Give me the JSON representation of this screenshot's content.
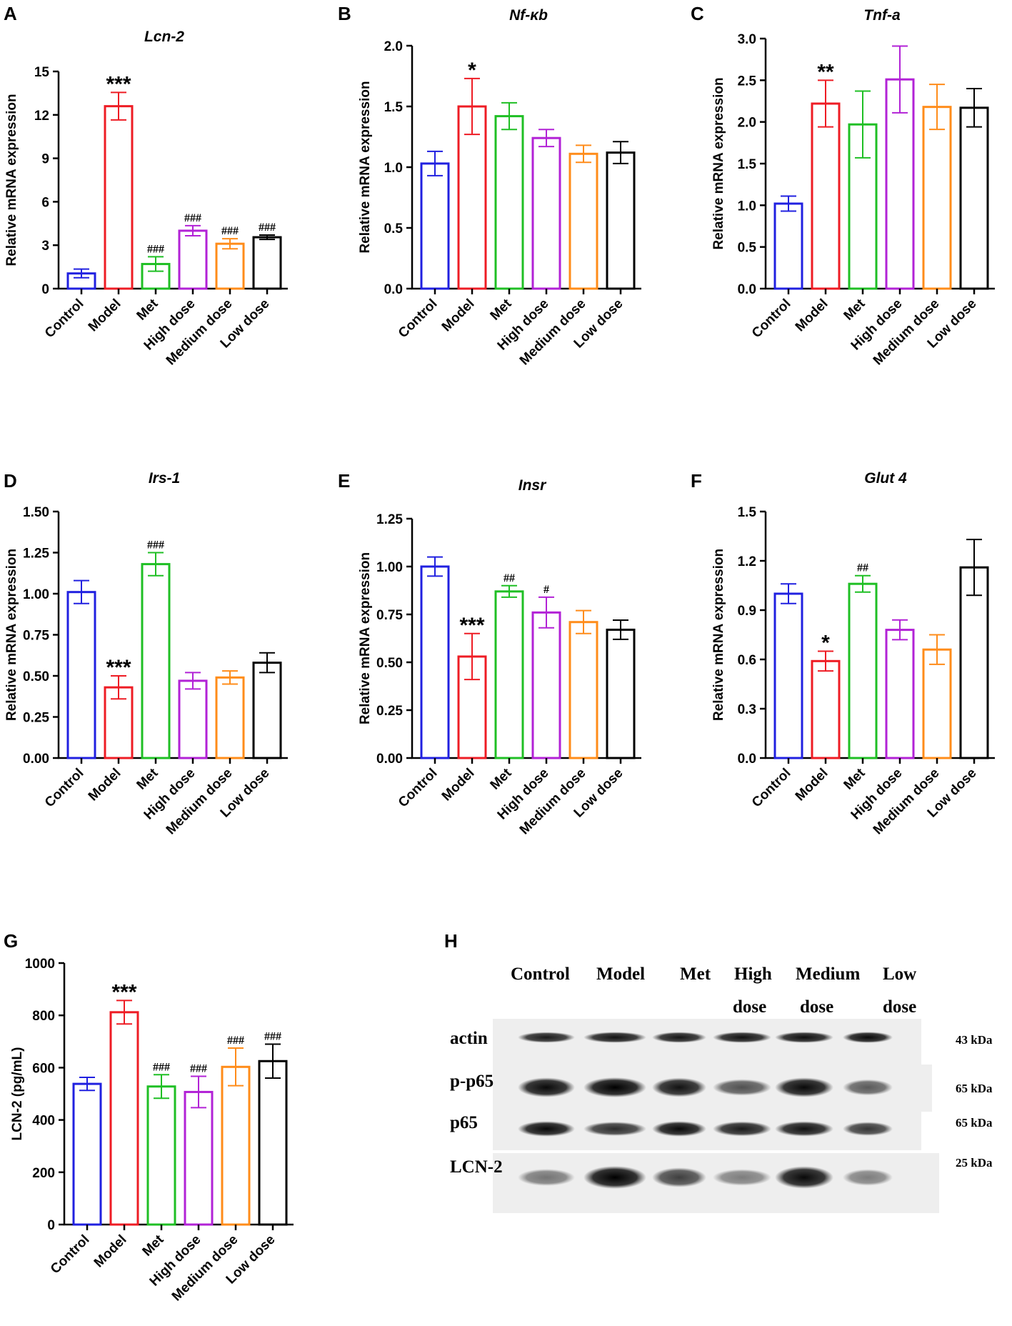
{
  "panel_letters": [
    "A",
    "B",
    "C",
    "D",
    "E",
    "F",
    "G",
    "H"
  ],
  "colors": {
    "Control": "#2020e0",
    "Model": "#ee1c24",
    "Met": "#1fbf24",
    "High dose": "#b222d6",
    "Medium dose": "#ff8c1a",
    "Low dose": "#000000"
  },
  "chart_data": [
    {
      "panel": "A",
      "type": "bar",
      "title": "Lcn-2",
      "title_italic": true,
      "ylabel": "Relative mRNA expression",
      "categories": [
        "Control",
        "Model",
        "Met",
        "High dose",
        "Medium dose",
        "Low dose"
      ],
      "values": [
        1.05,
        12.6,
        1.7,
        4.0,
        3.1,
        3.55
      ],
      "errors": [
        0.3,
        0.95,
        0.5,
        0.35,
        0.35,
        0.15
      ],
      "annotations": [
        "",
        "***",
        "###",
        "###",
        "###",
        "###"
      ],
      "ylim": [
        0,
        15
      ],
      "yticks": [
        0,
        3,
        6,
        9,
        12,
        15
      ],
      "tick_labels": [
        "0",
        "3",
        "6",
        "9",
        "12",
        "15"
      ]
    },
    {
      "panel": "B",
      "type": "bar",
      "title": "Nf-κb",
      "title_italic": true,
      "ylabel": "Relative mRNA expression",
      "categories": [
        "Control",
        "Model",
        "Met",
        "High dose",
        "Medium dose",
        "Low dose"
      ],
      "values": [
        1.03,
        1.5,
        1.42,
        1.24,
        1.11,
        1.12
      ],
      "errors": [
        0.1,
        0.23,
        0.11,
        0.07,
        0.07,
        0.09
      ],
      "annotations": [
        "",
        "*",
        "",
        "",
        "",
        ""
      ],
      "ylim": [
        0,
        2.0
      ],
      "yticks": [
        0,
        0.5,
        1.0,
        1.5,
        2.0
      ],
      "tick_labels": [
        "0.0",
        "0.5",
        "1.0",
        "1.5",
        "2.0"
      ]
    },
    {
      "panel": "C",
      "type": "bar",
      "title": "Tnf-a",
      "title_italic": true,
      "ylabel": "Relative mRNA expression",
      "categories": [
        "Control",
        "Model",
        "Met",
        "High dose",
        "Medium dose",
        "Low dose"
      ],
      "values": [
        1.02,
        2.22,
        1.97,
        2.51,
        2.18,
        2.17
      ],
      "errors": [
        0.09,
        0.28,
        0.4,
        0.4,
        0.27,
        0.23
      ],
      "annotations": [
        "",
        "**",
        "",
        "",
        "",
        ""
      ],
      "ylim": [
        0,
        3.0
      ],
      "yticks": [
        0,
        0.5,
        1.0,
        1.5,
        2.0,
        2.5,
        3.0
      ],
      "tick_labels": [
        "0.0",
        "0.5",
        "1.0",
        "1.5",
        "2.0",
        "2.5",
        "3.0"
      ]
    },
    {
      "panel": "D",
      "type": "bar",
      "title": "Irs-1",
      "title_italic": true,
      "ylabel": "Relative mRNA expression",
      "categories": [
        "Control",
        "Model",
        "Met",
        "High dose",
        "Medium dose",
        "Low dose"
      ],
      "values": [
        1.01,
        0.43,
        1.18,
        0.47,
        0.49,
        0.58
      ],
      "errors": [
        0.07,
        0.07,
        0.07,
        0.05,
        0.04,
        0.06
      ],
      "annotations": [
        "",
        "***",
        "###",
        "",
        "",
        ""
      ],
      "ylim": [
        0,
        1.5
      ],
      "yticks": [
        0,
        0.25,
        0.5,
        0.75,
        1.0,
        1.25,
        1.5
      ],
      "tick_labels": [
        "0.00",
        "0.25",
        "0.50",
        "0.75",
        "1.00",
        "1.25",
        "1.50"
      ]
    },
    {
      "panel": "E",
      "type": "bar",
      "title": "Insr",
      "title_italic": true,
      "ylabel": "Relative mRNA expression",
      "categories": [
        "Control",
        "Model",
        "Met",
        "High dose",
        "Medium dose",
        "Low dose"
      ],
      "values": [
        1.0,
        0.53,
        0.87,
        0.76,
        0.71,
        0.67
      ],
      "errors": [
        0.05,
        0.12,
        0.03,
        0.08,
        0.06,
        0.05
      ],
      "annotations": [
        "",
        "***",
        "##",
        "#",
        "",
        ""
      ],
      "ylim": [
        0,
        1.25
      ],
      "yticks": [
        0,
        0.25,
        0.5,
        0.75,
        1.0,
        1.25
      ],
      "tick_labels": [
        "0.00",
        "0.25",
        "0.50",
        "0.75",
        "1.00",
        "1.25"
      ]
    },
    {
      "panel": "F",
      "type": "bar",
      "title": "Glut 4",
      "title_italic": true,
      "ylabel": "Relative mRNA expression",
      "categories": [
        "Control",
        "Model",
        "Met",
        "High dose",
        "Medium dose",
        "Low dose"
      ],
      "values": [
        1.0,
        0.59,
        1.06,
        0.78,
        0.66,
        1.16
      ],
      "errors": [
        0.06,
        0.06,
        0.05,
        0.06,
        0.09,
        0.17
      ],
      "annotations": [
        "",
        "*",
        "##",
        "",
        "",
        ""
      ],
      "ylim": [
        0,
        1.5
      ],
      "yticks": [
        0,
        0.3,
        0.6,
        0.9,
        1.2,
        1.5
      ],
      "tick_labels": [
        "0.0",
        "0.3",
        "0.6",
        "0.9",
        "1.2",
        "1.5"
      ]
    },
    {
      "panel": "G",
      "type": "bar",
      "title": "",
      "title_italic": false,
      "ylabel": "LCN-2 (pg/mL)",
      "categories": [
        "Control",
        "Model",
        "Met",
        "High dose",
        "Medium dose",
        "Low dose"
      ],
      "values": [
        538,
        812,
        528,
        507,
        603,
        625
      ],
      "errors": [
        25,
        45,
        45,
        60,
        72,
        65
      ],
      "annotations": [
        "",
        "***",
        "###",
        "###",
        "###",
        "###"
      ],
      "ylim": [
        0,
        1000
      ],
      "yticks": [
        0,
        200,
        400,
        600,
        800,
        1000
      ],
      "tick_labels": [
        "0",
        "200",
        "400",
        "600",
        "800",
        "1000"
      ]
    }
  ],
  "western_blot": {
    "columns_top": [
      "Control",
      "Model",
      "Met",
      "High",
      "Medium",
      "Low"
    ],
    "columns_bottom": [
      "",
      "",
      "",
      "dose",
      "dose",
      "dose"
    ],
    "rows": [
      {
        "label": "actin",
        "kda": "43 kDa",
        "intensity": [
          0.85,
          0.9,
          0.88,
          0.9,
          0.92,
          0.95
        ]
      },
      {
        "label": "p-p65",
        "kda": "65 kDa",
        "intensity": [
          0.95,
          1.0,
          0.9,
          0.55,
          0.95,
          0.5
        ]
      },
      {
        "label": "p65",
        "kda": "65 kDa",
        "intensity": [
          0.95,
          0.75,
          0.95,
          0.85,
          0.9,
          0.7
        ]
      },
      {
        "label": "LCN-2",
        "kda": "25 kDa",
        "intensity": [
          0.35,
          1.0,
          0.65,
          0.3,
          0.95,
          0.3
        ]
      }
    ]
  }
}
